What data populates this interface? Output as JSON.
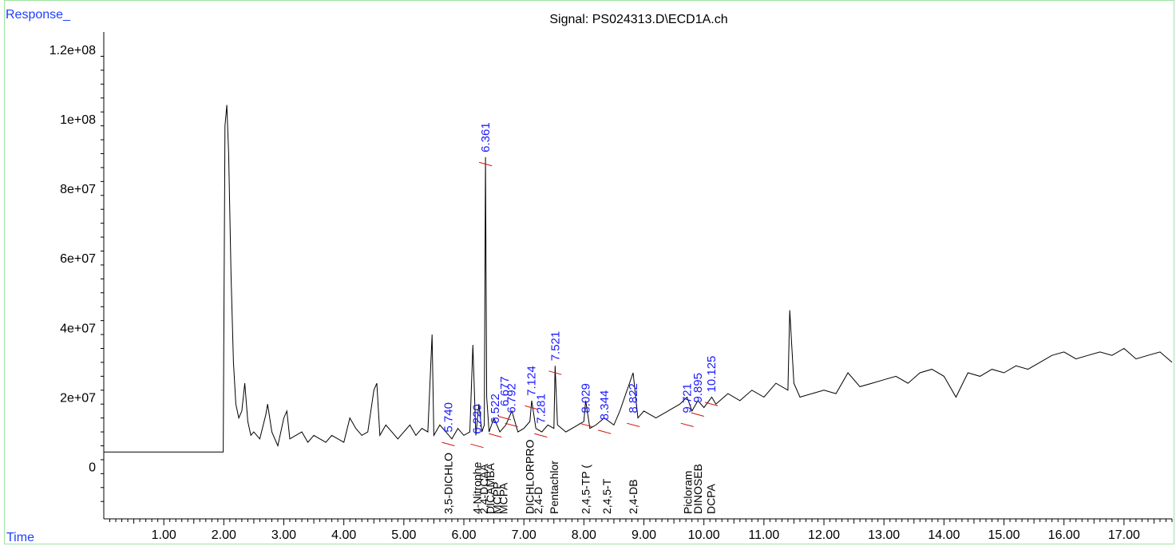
{
  "chart_data": {
    "type": "line",
    "title": "Signal: PS024313.D\\ECD1A.ch",
    "ylabel": "Response_",
    "xlabel": "Time",
    "xlim": [
      0.0,
      17.8
    ],
    "ylim": [
      -15000000,
      125000000
    ],
    "x_ticks": [
      "1.00",
      "2.00",
      "3.00",
      "4.00",
      "5.00",
      "6.00",
      "7.00",
      "8.00",
      "9.00",
      "10.00",
      "11.00",
      "12.00",
      "13.00",
      "14.00",
      "15.00",
      "16.00",
      "17.00"
    ],
    "y_ticks": [
      "0",
      "2e+07",
      "4e+07",
      "6e+07",
      "8e+07",
      "1e+08",
      "1.2e+08"
    ],
    "y_tick_values": [
      0,
      20000000,
      40000000,
      60000000,
      80000000,
      100000000,
      120000000
    ],
    "series": [
      {
        "x": [
          0.0,
          1.99,
          2.0,
          2.02,
          2.05,
          2.08,
          2.12,
          2.16,
          2.2,
          2.25,
          2.3,
          2.35,
          2.4,
          2.45,
          2.5,
          2.6,
          2.7,
          2.73,
          2.8,
          2.9,
          3.0,
          3.05,
          3.1,
          3.2,
          3.3,
          3.4,
          3.5,
          3.6,
          3.7,
          3.8,
          3.9,
          4.0,
          4.1,
          4.2,
          4.3,
          4.4,
          4.5,
          4.55,
          4.6,
          4.7,
          4.8,
          4.9,
          5.0,
          5.1,
          5.2,
          5.3,
          5.4,
          5.47,
          5.5,
          5.6,
          5.7,
          5.8,
          5.9,
          6.0,
          6.1,
          6.15,
          6.2,
          6.25,
          6.3,
          6.34,
          6.36,
          6.38,
          6.42,
          6.5,
          6.6,
          6.7,
          6.8,
          6.9,
          7.0,
          7.1,
          7.13,
          7.2,
          7.3,
          7.4,
          7.5,
          7.52,
          7.56,
          7.7,
          7.9,
          8.0,
          8.03,
          8.1,
          8.2,
          8.34,
          8.5,
          8.6,
          8.82,
          8.9,
          9.0,
          9.2,
          9.4,
          9.6,
          9.72,
          9.8,
          9.9,
          10.0,
          10.13,
          10.2,
          10.4,
          10.6,
          10.8,
          11.0,
          11.2,
          11.4,
          11.43,
          11.5,
          11.6,
          11.8,
          12.0,
          12.2,
          12.4,
          12.6,
          12.8,
          13.0,
          13.2,
          13.4,
          13.6,
          13.8,
          14.0,
          14.2,
          14.4,
          14.6,
          14.8,
          15.0,
          15.2,
          15.4,
          15.6,
          15.8,
          16.0,
          16.2,
          16.4,
          16.6,
          16.8,
          17.0,
          17.2,
          17.4,
          17.6,
          17.8
        ],
        "y": [
          4200000,
          4200000,
          35000000,
          98000000,
          104000000,
          90000000,
          55000000,
          30000000,
          18000000,
          14000000,
          16000000,
          24000000,
          13000000,
          9000000,
          10000000,
          8000000,
          15000000,
          18000000,
          10000000,
          6000000,
          14000000,
          16000000,
          8000000,
          9000000,
          10000000,
          7000000,
          9000000,
          8000000,
          7000000,
          9000000,
          8000000,
          7000000,
          14000000,
          11000000,
          9000000,
          10000000,
          22000000,
          24000000,
          9000000,
          12000000,
          10000000,
          8000000,
          10000000,
          12000000,
          9000000,
          11000000,
          10000000,
          38000000,
          9000000,
          12000000,
          10000000,
          8000000,
          11000000,
          9000000,
          10000000,
          35000000,
          9000000,
          18000000,
          10000000,
          12000000,
          89000000,
          20000000,
          10000000,
          14000000,
          10000000,
          12000000,
          16000000,
          10000000,
          11000000,
          13000000,
          19000000,
          11000000,
          10000000,
          12000000,
          11000000,
          29000000,
          12000000,
          10000000,
          12000000,
          13000000,
          19000000,
          11000000,
          12000000,
          14000000,
          12000000,
          16000000,
          27000000,
          14000000,
          16000000,
          14000000,
          16000000,
          18000000,
          20000000,
          16000000,
          19000000,
          17000000,
          20000000,
          18000000,
          21000000,
          19000000,
          22000000,
          20000000,
          24000000,
          22000000,
          45000000,
          24000000,
          20000000,
          21000000,
          22000000,
          21000000,
          27000000,
          23000000,
          24000000,
          25000000,
          26000000,
          24000000,
          27000000,
          28000000,
          26000000,
          20000000,
          27000000,
          26000000,
          28000000,
          27000000,
          29000000,
          28000000,
          30000000,
          32000000,
          33000000,
          31000000,
          32000000,
          33000000,
          32000000,
          34000000,
          31000000,
          32000000,
          33000000,
          30000000
        ]
      }
    ],
    "peaks": [
      {
        "rt": "5.740",
        "x": 5.74,
        "y": 8500000
      },
      {
        "rt": "6.220",
        "x": 6.22,
        "y": 8000000
      },
      {
        "rt": "6.361",
        "x": 6.361,
        "y": 89000000
      },
      {
        "rt": "6.522",
        "x": 6.522,
        "y": 11000000
      },
      {
        "rt": "6.677",
        "x": 6.677,
        "y": 16000000
      },
      {
        "rt": "6.792",
        "x": 6.792,
        "y": 14000000
      },
      {
        "rt": "7.124",
        "x": 7.124,
        "y": 19000000
      },
      {
        "rt": "7.281",
        "x": 7.281,
        "y": 11000000
      },
      {
        "rt": "7.521",
        "x": 7.521,
        "y": 29000000
      },
      {
        "rt": "8.029",
        "x": 8.029,
        "y": 14000000
      },
      {
        "rt": "8.344",
        "x": 8.344,
        "y": 12000000
      },
      {
        "rt": "8.822",
        "x": 8.822,
        "y": 14000000
      },
      {
        "rt": "9.721",
        "x": 9.721,
        "y": 14000000
      },
      {
        "rt": "9.895",
        "x": 9.895,
        "y": 17000000
      },
      {
        "rt": "10.125",
        "x": 10.125,
        "y": 20000000
      }
    ],
    "compounds": [
      {
        "name": "3,5-DICHLO",
        "x": 5.74
      },
      {
        "name": "4-Nitrophe",
        "x": 6.22
      },
      {
        "name": "2,4-DCAA",
        "x": 6.33
      },
      {
        "name": "DICAMBA",
        "x": 6.44
      },
      {
        "name": "MCPP",
        "x": 6.55
      },
      {
        "name": "MCPA",
        "x": 6.66
      },
      {
        "name": "DICHLORPRO",
        "x": 7.1
      },
      {
        "name": "2,4-D",
        "x": 7.24
      },
      {
        "name": "Pentachlor",
        "x": 7.5
      },
      {
        "name": "2,4,5-TP (",
        "x": 8.03
      },
      {
        "name": "2,4,5-T",
        "x": 8.38
      },
      {
        "name": "2,4-DB",
        "x": 8.82
      },
      {
        "name": "Picloram",
        "x": 9.73
      },
      {
        "name": "DINOSEB",
        "x": 9.9
      },
      {
        "name": "DCPA",
        "x": 10.12
      }
    ]
  }
}
